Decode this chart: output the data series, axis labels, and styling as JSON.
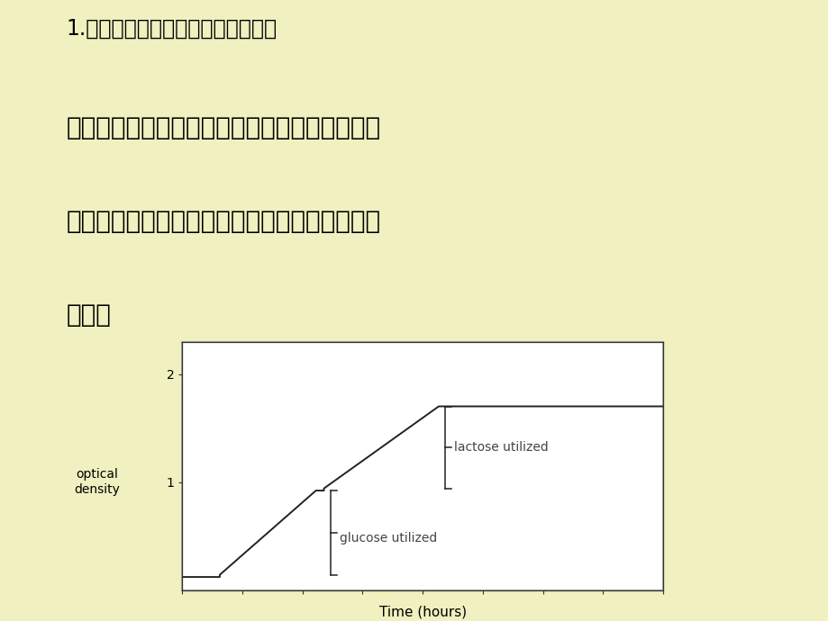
{
  "background_color": "#f0f0c0",
  "chart_bg": "#ffffff",
  "chart_line_color": "#222222",
  "slide_title": "1.控制营养物质透过细胞膜进入细胞",
  "slide_body_line1_bold": "如：只有当速效碳源或氮源耗尽时，微生物才合",
  "slide_body_line2_bold": "成迟效碳源或氮源的运输系统与分解该物质的酶",
  "slide_body_line3_bold": "系统。",
  "xlabel": "Time (hours)",
  "ylabel_line1": "optical",
  "ylabel_line2": "density",
  "ytick_vals": [
    1,
    2
  ],
  "annotation_glucose": "glucose utilized",
  "annotation_lactose": "lactose utilized",
  "title_fontsize": 17,
  "body_fontsize": 20,
  "axis_fontsize": 10,
  "annotation_fontsize": 10,
  "border_color": "#999999"
}
